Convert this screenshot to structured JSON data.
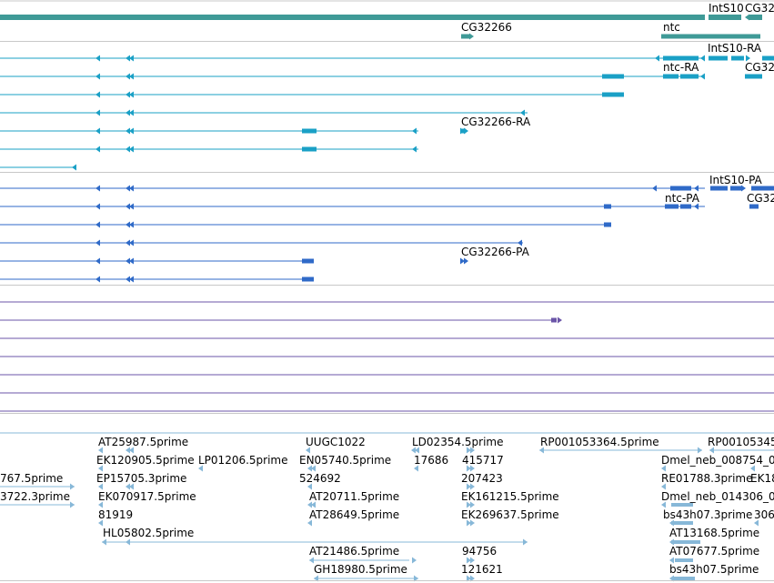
{
  "viewer": {
    "name": "genome-browser-tracks"
  },
  "colors": {
    "gene": "#3f9a97",
    "transcript": "#1aa0c6",
    "protein": "#2f6ac8",
    "purple": "#6b55a8",
    "est": "#87b8d8",
    "separator": "#c8c8c8"
  },
  "labels": {
    "gene": [
      "IntS10",
      "CG32",
      "CG32266",
      "ntc"
    ],
    "transcript": [
      "IntS10-RA",
      "ntc-RA",
      "CG32",
      "CG32266-RA"
    ],
    "protein": [
      "IntS10-PA",
      "ntc-PA",
      "CG32",
      "CG32266-PA"
    ],
    "est": [
      "AT25987.5prime",
      "UUGC1022",
      "LD02354.5prime",
      "RP001053364.5prime",
      "RP00105345",
      "EK120905.5prime",
      "LP01206.5prime",
      "EN05740.5prime",
      "17686",
      "415717",
      "Dmel_neb_008754_0",
      "767.5prime",
      "EP15705.3prime",
      "524692",
      "207423",
      "RE01788.3prime",
      "EK18",
      "3722.3prime",
      "EK070917.5prime",
      "AT20711.5prime",
      "EK161215.5prime",
      "Dmel_neb_014306_0",
      "81919",
      "AT28649.5prime",
      "EK269637.5prime",
      "bs43h07.3prime",
      "306",
      "HL05802.5prime",
      "AT13168.5prime",
      "AT21486.5prime",
      "94756",
      "AT07677.5prime",
      "GH18980.5prime",
      "121621",
      "bs43h07.5prime"
    ]
  }
}
